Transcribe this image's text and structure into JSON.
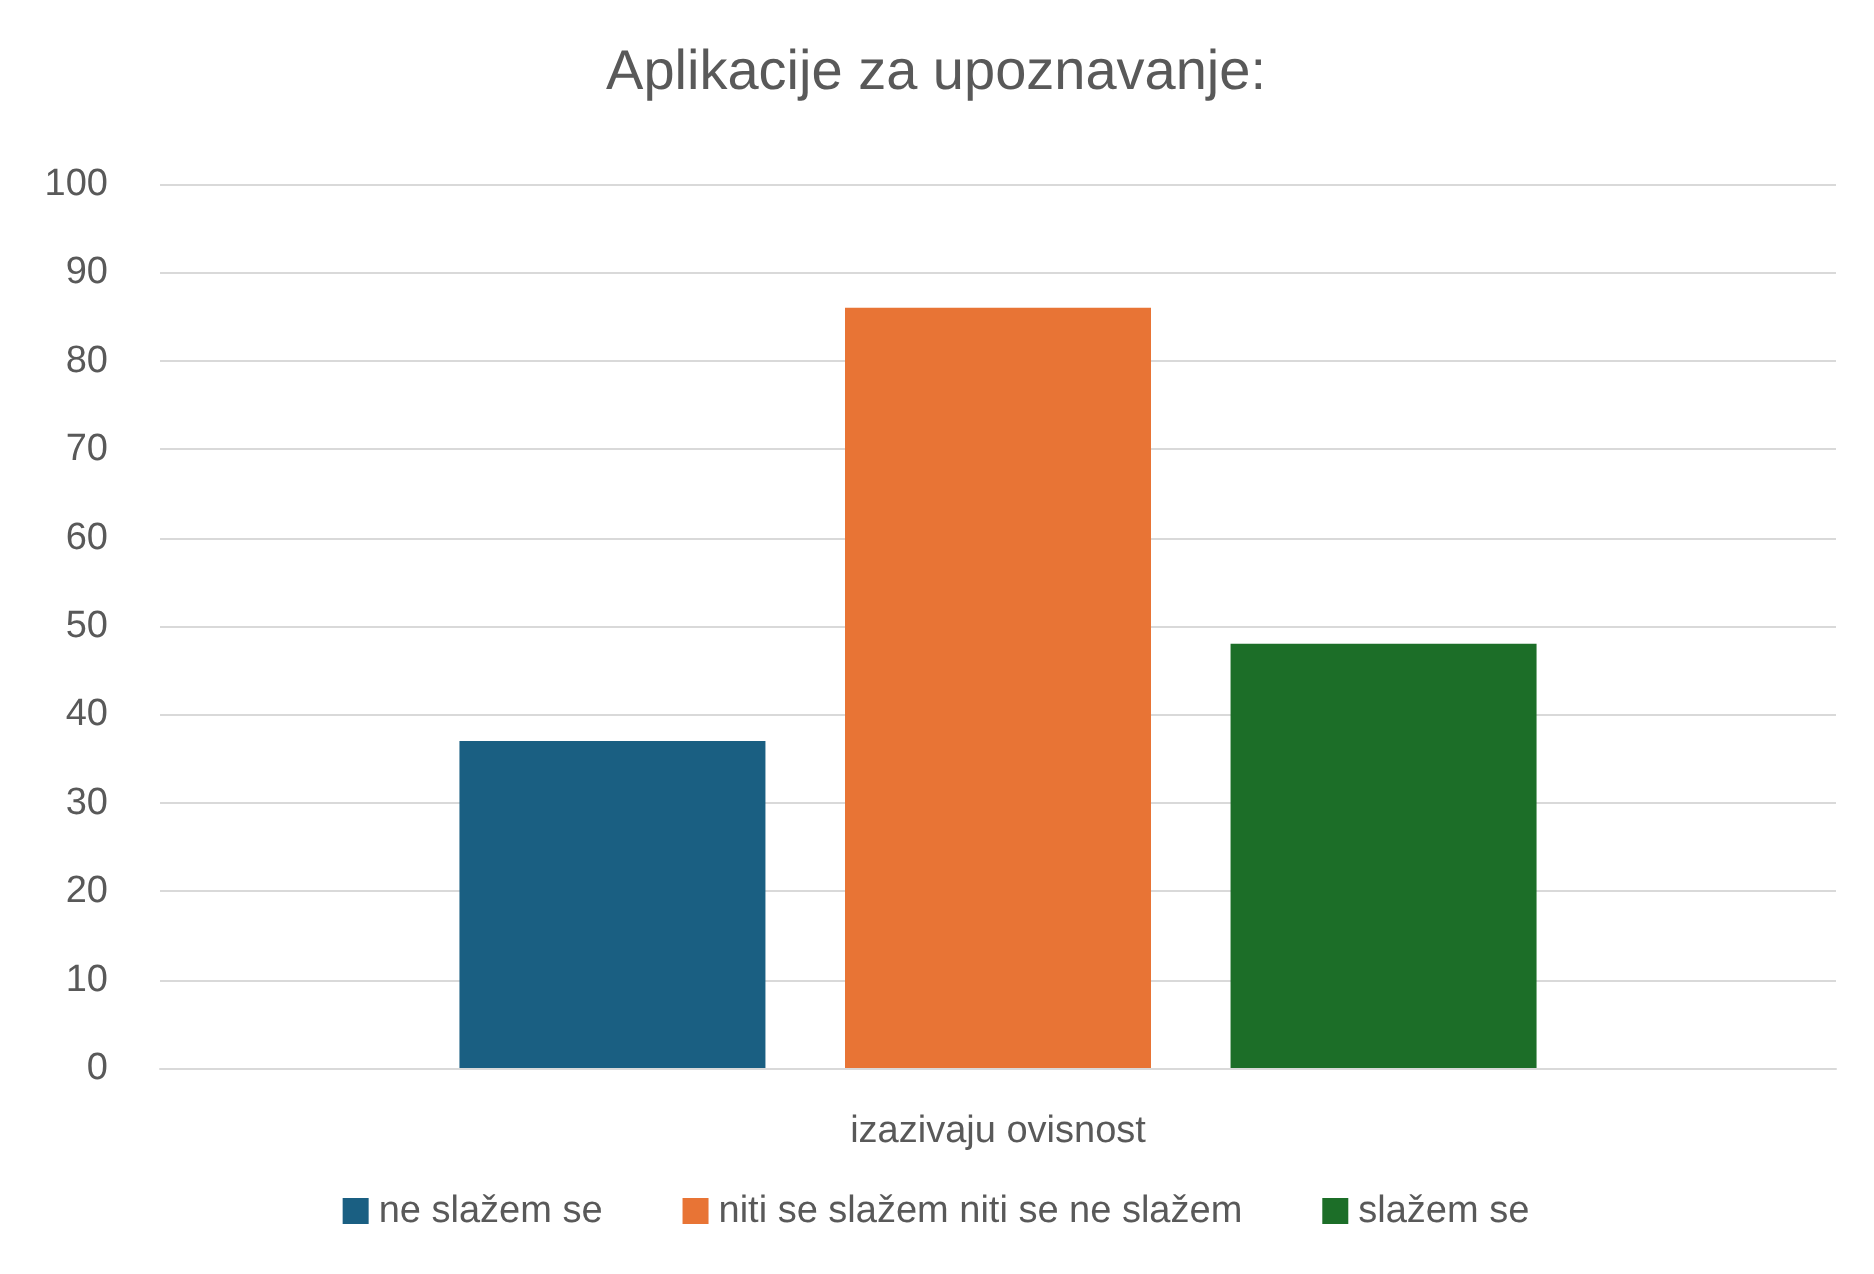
{
  "chart_data": {
    "type": "bar",
    "title": "Aplikacije za upoznavanje:",
    "categories": [
      "izazivaju ovisnost"
    ],
    "series": [
      {
        "name": "ne slažem se",
        "color": "#1a5f82",
        "values": [
          37
        ]
      },
      {
        "name": "niti se slažem niti se ne slažem",
        "color": "#e87435",
        "values": [
          86
        ]
      },
      {
        "name": "slažem se",
        "color": "#1c6e28",
        "values": [
          48
        ]
      }
    ],
    "ylim": [
      0,
      100
    ],
    "yticks": [
      0,
      10,
      20,
      30,
      40,
      50,
      60,
      70,
      80,
      90,
      100
    ],
    "grid": "y",
    "legend": "bottom"
  }
}
